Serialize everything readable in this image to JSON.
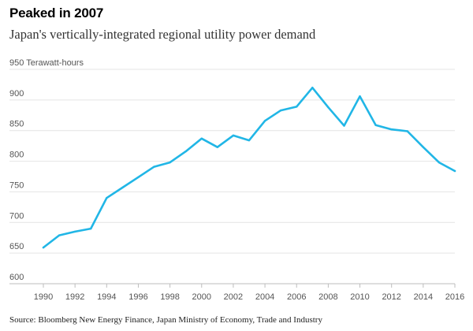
{
  "title": "Peaked in 2007",
  "subtitle": "Japan's vertically-integrated regional utility power demand",
  "source": "Source: Bloomberg New Energy Finance, Japan Ministry of Economy, Trade and Industry",
  "colors": {
    "series": "#21b6e6",
    "grid": "#e4e4e4",
    "axis": "#bdbdbd",
    "tick_text": "#555555"
  },
  "chart_data": {
    "type": "line",
    "title": "Peaked in 2007",
    "subtitle": "Japan's vertically-integrated regional utility power demand",
    "ylabel": "",
    "y_unit_label": "Terawatt-hours",
    "xlabel": "",
    "xlim": [
      1990,
      2016
    ],
    "ylim": [
      600,
      950
    ],
    "y_ticks": [
      600,
      650,
      700,
      750,
      800,
      850,
      900,
      950
    ],
    "x_ticks": [
      1990,
      1992,
      1994,
      1996,
      1998,
      2000,
      2002,
      2004,
      2006,
      2008,
      2010,
      2012,
      2014,
      2016
    ],
    "grid": true,
    "legend": "none",
    "series": [
      {
        "x": [
          1990,
          1991,
          1992,
          1993,
          1994,
          1995,
          1996,
          1997,
          1998,
          1999,
          2000,
          2001,
          2002,
          2003,
          2004,
          2005,
          2006,
          2007,
          2008,
          2009,
          2010,
          2011,
          2012,
          2013,
          2014,
          2015,
          2016
        ],
        "values": [
          659,
          679,
          685,
          690,
          740,
          757,
          774,
          791,
          798,
          816,
          837,
          823,
          842,
          834,
          866,
          883,
          889,
          920,
          888,
          858,
          906,
          859,
          852,
          849,
          823,
          798,
          784
        ]
      }
    ]
  }
}
